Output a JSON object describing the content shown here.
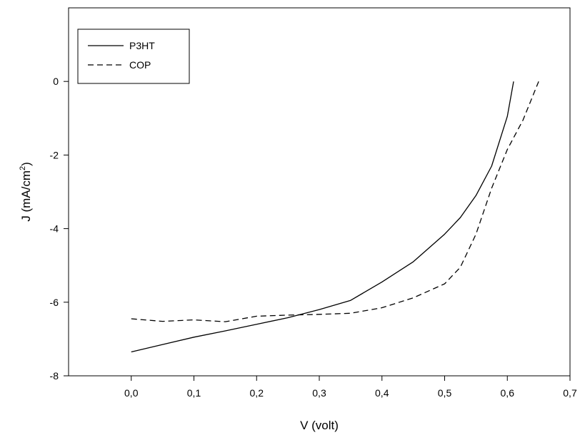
{
  "chart_data": {
    "type": "line",
    "xlabel": "V (volt)",
    "ylabel_main": "J (mA/cm",
    "ylabel_sup": "2",
    "ylabel_close": ")",
    "xlim": [
      -0.1,
      0.7
    ],
    "ylim": [
      -8,
      2
    ],
    "x_ticks": [
      0.0,
      0.1,
      0.2,
      0.3,
      0.4,
      0.5,
      0.6,
      0.7
    ],
    "x_tick_labels": [
      "0,0",
      "0,1",
      "0,2",
      "0,3",
      "0,4",
      "0,5",
      "0,6",
      "0,7"
    ],
    "y_ticks": [
      0,
      -2,
      -4,
      -6,
      -8
    ],
    "y_tick_labels": [
      "0",
      "-2",
      "-4",
      "-6",
      "-8"
    ],
    "grid": false,
    "legend_position": "top-left",
    "series": [
      {
        "name": "P3HT",
        "line_style": "solid",
        "x": [
          0.0,
          0.05,
          0.1,
          0.15,
          0.2,
          0.25,
          0.3,
          0.35,
          0.4,
          0.45,
          0.5,
          0.525,
          0.55,
          0.575,
          0.6,
          0.61
        ],
        "y": [
          -7.35,
          -7.15,
          -6.95,
          -6.78,
          -6.6,
          -6.42,
          -6.2,
          -5.95,
          -5.45,
          -4.9,
          -4.15,
          -3.7,
          -3.1,
          -2.3,
          -0.95,
          0.0
        ]
      },
      {
        "name": "COP",
        "line_style": "dashed",
        "x": [
          0.0,
          0.05,
          0.1,
          0.15,
          0.2,
          0.25,
          0.3,
          0.35,
          0.4,
          0.45,
          0.5,
          0.525,
          0.55,
          0.575,
          0.6,
          0.625,
          0.65
        ],
        "y": [
          -6.45,
          -6.52,
          -6.48,
          -6.53,
          -6.38,
          -6.35,
          -6.33,
          -6.3,
          -6.15,
          -5.88,
          -5.5,
          -5.05,
          -4.15,
          -2.9,
          -1.85,
          -1.05,
          0.0
        ]
      }
    ]
  }
}
